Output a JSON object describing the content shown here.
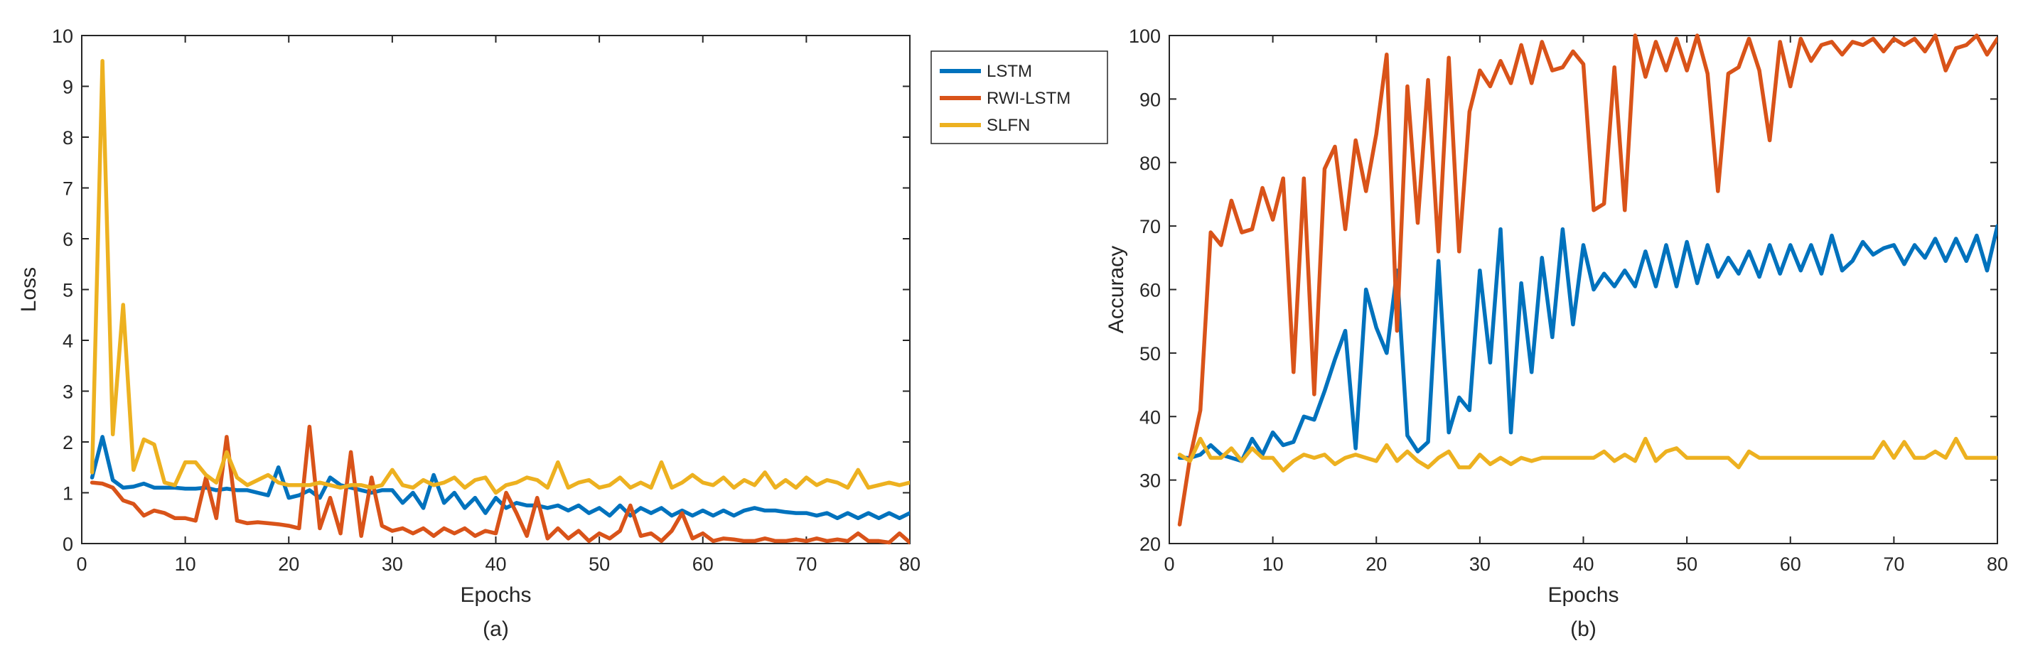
{
  "figure": {
    "captions": [
      "(a)",
      "(b)"
    ]
  },
  "legend": {
    "entries": [
      "LSTM",
      "RWI-LSTM",
      "SLFN"
    ],
    "colors": [
      "#0072BD",
      "#D95319",
      "#EDB120"
    ]
  },
  "chart_data": [
    {
      "type": "line",
      "title": "",
      "caption": "(a)",
      "xlabel": "Epochs",
      "ylabel": "Loss",
      "xlim": [
        0,
        80
      ],
      "ylim": [
        0,
        10
      ],
      "xticks": [
        0,
        10,
        20,
        30,
        40,
        50,
        60,
        70,
        80
      ],
      "yticks": [
        0,
        1,
        2,
        3,
        4,
        5,
        6,
        7,
        8,
        9,
        10
      ],
      "x": [
        1,
        2,
        3,
        4,
        5,
        6,
        7,
        8,
        9,
        10,
        11,
        12,
        13,
        14,
        15,
        16,
        17,
        18,
        19,
        20,
        21,
        22,
        23,
        24,
        25,
        26,
        27,
        28,
        29,
        30,
        31,
        32,
        33,
        34,
        35,
        36,
        37,
        38,
        39,
        40,
        41,
        42,
        43,
        44,
        45,
        46,
        47,
        48,
        49,
        50,
        51,
        52,
        53,
        54,
        55,
        56,
        57,
        58,
        59,
        60,
        61,
        62,
        63,
        64,
        65,
        66,
        67,
        68,
        69,
        70,
        71,
        72,
        73,
        74,
        75,
        76,
        77,
        78,
        79,
        80
      ],
      "series": [
        {
          "name": "LSTM",
          "color": "#0072BD",
          "values": [
            1.3,
            2.1,
            1.25,
            1.1,
            1.12,
            1.18,
            1.1,
            1.1,
            1.1,
            1.08,
            1.08,
            1.1,
            1.05,
            1.08,
            1.05,
            1.05,
            1.0,
            0.95,
            1.5,
            0.9,
            0.95,
            1.05,
            0.9,
            1.3,
            1.15,
            1.1,
            1.05,
            1.0,
            1.05,
            1.05,
            0.8,
            1.0,
            0.7,
            1.35,
            0.8,
            1.0,
            0.7,
            0.9,
            0.6,
            0.9,
            0.7,
            0.8,
            0.75,
            0.75,
            0.7,
            0.75,
            0.65,
            0.75,
            0.6,
            0.7,
            0.55,
            0.75,
            0.55,
            0.7,
            0.6,
            0.7,
            0.55,
            0.65,
            0.55,
            0.65,
            0.55,
            0.65,
            0.55,
            0.65,
            0.7,
            0.65,
            0.65,
            0.62,
            0.6,
            0.6,
            0.55,
            0.6,
            0.5,
            0.6,
            0.5,
            0.6,
            0.5,
            0.6,
            0.5,
            0.6
          ]
        },
        {
          "name": "RWI-LSTM",
          "color": "#D95319",
          "values": [
            1.2,
            1.18,
            1.1,
            0.85,
            0.78,
            0.55,
            0.65,
            0.6,
            0.5,
            0.5,
            0.45,
            1.3,
            0.5,
            2.1,
            0.45,
            0.4,
            0.42,
            0.4,
            0.38,
            0.35,
            0.3,
            2.3,
            0.3,
            0.9,
            0.2,
            1.8,
            0.15,
            1.3,
            0.35,
            0.25,
            0.3,
            0.2,
            0.3,
            0.15,
            0.3,
            0.2,
            0.3,
            0.15,
            0.25,
            0.2,
            1.0,
            0.6,
            0.15,
            0.9,
            0.1,
            0.3,
            0.1,
            0.25,
            0.05,
            0.2,
            0.1,
            0.25,
            0.75,
            0.15,
            0.2,
            0.05,
            0.25,
            0.6,
            0.1,
            0.2,
            0.05,
            0.1,
            0.08,
            0.05,
            0.05,
            0.1,
            0.05,
            0.05,
            0.08,
            0.05,
            0.1,
            0.05,
            0.08,
            0.05,
            0.2,
            0.05,
            0.05,
            0.02,
            0.2,
            0.02
          ]
        },
        {
          "name": "SLFN",
          "color": "#EDB120",
          "values": [
            1.4,
            9.5,
            2.15,
            4.7,
            1.45,
            2.05,
            1.95,
            1.2,
            1.15,
            1.6,
            1.6,
            1.35,
            1.2,
            1.8,
            1.3,
            1.15,
            1.25,
            1.35,
            1.2,
            1.15,
            1.15,
            1.15,
            1.2,
            1.15,
            1.1,
            1.15,
            1.15,
            1.1,
            1.15,
            1.45,
            1.15,
            1.1,
            1.25,
            1.15,
            1.2,
            1.3,
            1.1,
            1.25,
            1.3,
            1.0,
            1.15,
            1.2,
            1.3,
            1.25,
            1.1,
            1.6,
            1.1,
            1.2,
            1.25,
            1.1,
            1.15,
            1.3,
            1.1,
            1.2,
            1.1,
            1.6,
            1.1,
            1.2,
            1.35,
            1.2,
            1.15,
            1.3,
            1.1,
            1.25,
            1.15,
            1.4,
            1.1,
            1.25,
            1.1,
            1.3,
            1.15,
            1.25,
            1.2,
            1.1,
            1.45,
            1.1,
            1.15,
            1.2,
            1.15,
            1.2
          ]
        }
      ]
    },
    {
      "type": "line",
      "title": "",
      "caption": "(b)",
      "xlabel": "Epochs",
      "ylabel": "Accuracy",
      "xlim": [
        0,
        80
      ],
      "ylim": [
        20,
        100
      ],
      "xticks": [
        0,
        10,
        20,
        30,
        40,
        50,
        60,
        70,
        80
      ],
      "yticks": [
        20,
        30,
        40,
        50,
        60,
        70,
        80,
        90,
        100
      ],
      "x": [
        1,
        2,
        3,
        4,
        5,
        6,
        7,
        8,
        9,
        10,
        11,
        12,
        13,
        14,
        15,
        16,
        17,
        18,
        19,
        20,
        21,
        22,
        23,
        24,
        25,
        26,
        27,
        28,
        29,
        30,
        31,
        32,
        33,
        34,
        35,
        36,
        37,
        38,
        39,
        40,
        41,
        42,
        43,
        44,
        45,
        46,
        47,
        48,
        49,
        50,
        51,
        52,
        53,
        54,
        55,
        56,
        57,
        58,
        59,
        60,
        61,
        62,
        63,
        64,
        65,
        66,
        67,
        68,
        69,
        70,
        71,
        72,
        73,
        74,
        75,
        76,
        77,
        78,
        79,
        80
      ],
      "series": [
        {
          "name": "LSTM",
          "color": "#0072BD",
          "values": [
            33.5,
            33.5,
            34.0,
            35.5,
            34.0,
            33.5,
            33.0,
            36.5,
            34.0,
            37.5,
            35.5,
            36.0,
            40.0,
            39.5,
            44.0,
            49.0,
            53.5,
            35.0,
            60.0,
            54.0,
            50.0,
            63.0,
            37.0,
            34.5,
            36.0,
            64.5,
            37.5,
            43.0,
            41.0,
            63.0,
            48.5,
            69.5,
            37.5,
            61.0,
            47.0,
            65.0,
            52.5,
            69.5,
            54.5,
            67.0,
            60.0,
            62.5,
            60.5,
            63.0,
            60.5,
            66.0,
            60.5,
            67.0,
            60.5,
            67.5,
            61.0,
            67.0,
            62.0,
            65.0,
            62.5,
            66.0,
            62.0,
            67.0,
            62.5,
            67.0,
            63.0,
            67.0,
            62.5,
            68.5,
            63.0,
            64.5,
            67.5,
            65.5,
            66.5,
            67.0,
            64.0,
            67.0,
            65.0,
            68.0,
            64.5,
            68.0,
            64.5,
            68.5,
            63.0,
            70.0
          ]
        },
        {
          "name": "RWI-LSTM",
          "color": "#D95319",
          "values": [
            23.0,
            33.5,
            41.0,
            69.0,
            67.0,
            74.0,
            69.0,
            69.5,
            76.0,
            71.0,
            77.5,
            47.0,
            77.5,
            43.5,
            79.0,
            82.5,
            69.5,
            83.5,
            75.5,
            84.5,
            97.0,
            53.5,
            92.0,
            70.5,
            93.0,
            66.0,
            96.5,
            66.0,
            88.0,
            94.5,
            92.0,
            96.0,
            92.5,
            98.5,
            92.5,
            99.0,
            94.5,
            95.0,
            97.5,
            95.5,
            72.5,
            73.5,
            95.0,
            72.5,
            100.0,
            93.5,
            99.0,
            94.5,
            99.5,
            94.5,
            100.0,
            94.0,
            75.5,
            94.0,
            95.0,
            99.5,
            94.5,
            83.5,
            99.0,
            92.0,
            99.5,
            96.0,
            98.5,
            99.0,
            97.0,
            99.0,
            98.5,
            99.5,
            97.5,
            99.5,
            98.5,
            99.5,
            97.5,
            100.0,
            94.5,
            98.0,
            98.5,
            100.0,
            97.0,
            99.5
          ]
        },
        {
          "name": "SLFN",
          "color": "#EDB120",
          "values": [
            34.0,
            33.0,
            36.5,
            33.5,
            33.5,
            35.0,
            33.0,
            35.0,
            33.5,
            33.5,
            31.5,
            33.0,
            34.0,
            33.5,
            34.0,
            32.5,
            33.5,
            34.0,
            33.5,
            33.0,
            35.5,
            33.0,
            34.5,
            33.0,
            32.0,
            33.5,
            34.5,
            32.0,
            32.0,
            34.0,
            32.5,
            33.5,
            32.5,
            33.5,
            33.0,
            33.5,
            33.5,
            33.5,
            33.5,
            33.5,
            33.5,
            34.5,
            33.0,
            34.0,
            33.0,
            36.5,
            33.0,
            34.5,
            35.0,
            33.5,
            33.5,
            33.5,
            33.5,
            33.5,
            32.0,
            34.5,
            33.5,
            33.5,
            33.5,
            33.5,
            33.5,
            33.5,
            33.5,
            33.5,
            33.5,
            33.5,
            33.5,
            33.5,
            36.0,
            33.5,
            36.0,
            33.5,
            33.5,
            34.5,
            33.5,
            36.5,
            33.5,
            33.5,
            33.5,
            33.5
          ]
        }
      ]
    }
  ]
}
